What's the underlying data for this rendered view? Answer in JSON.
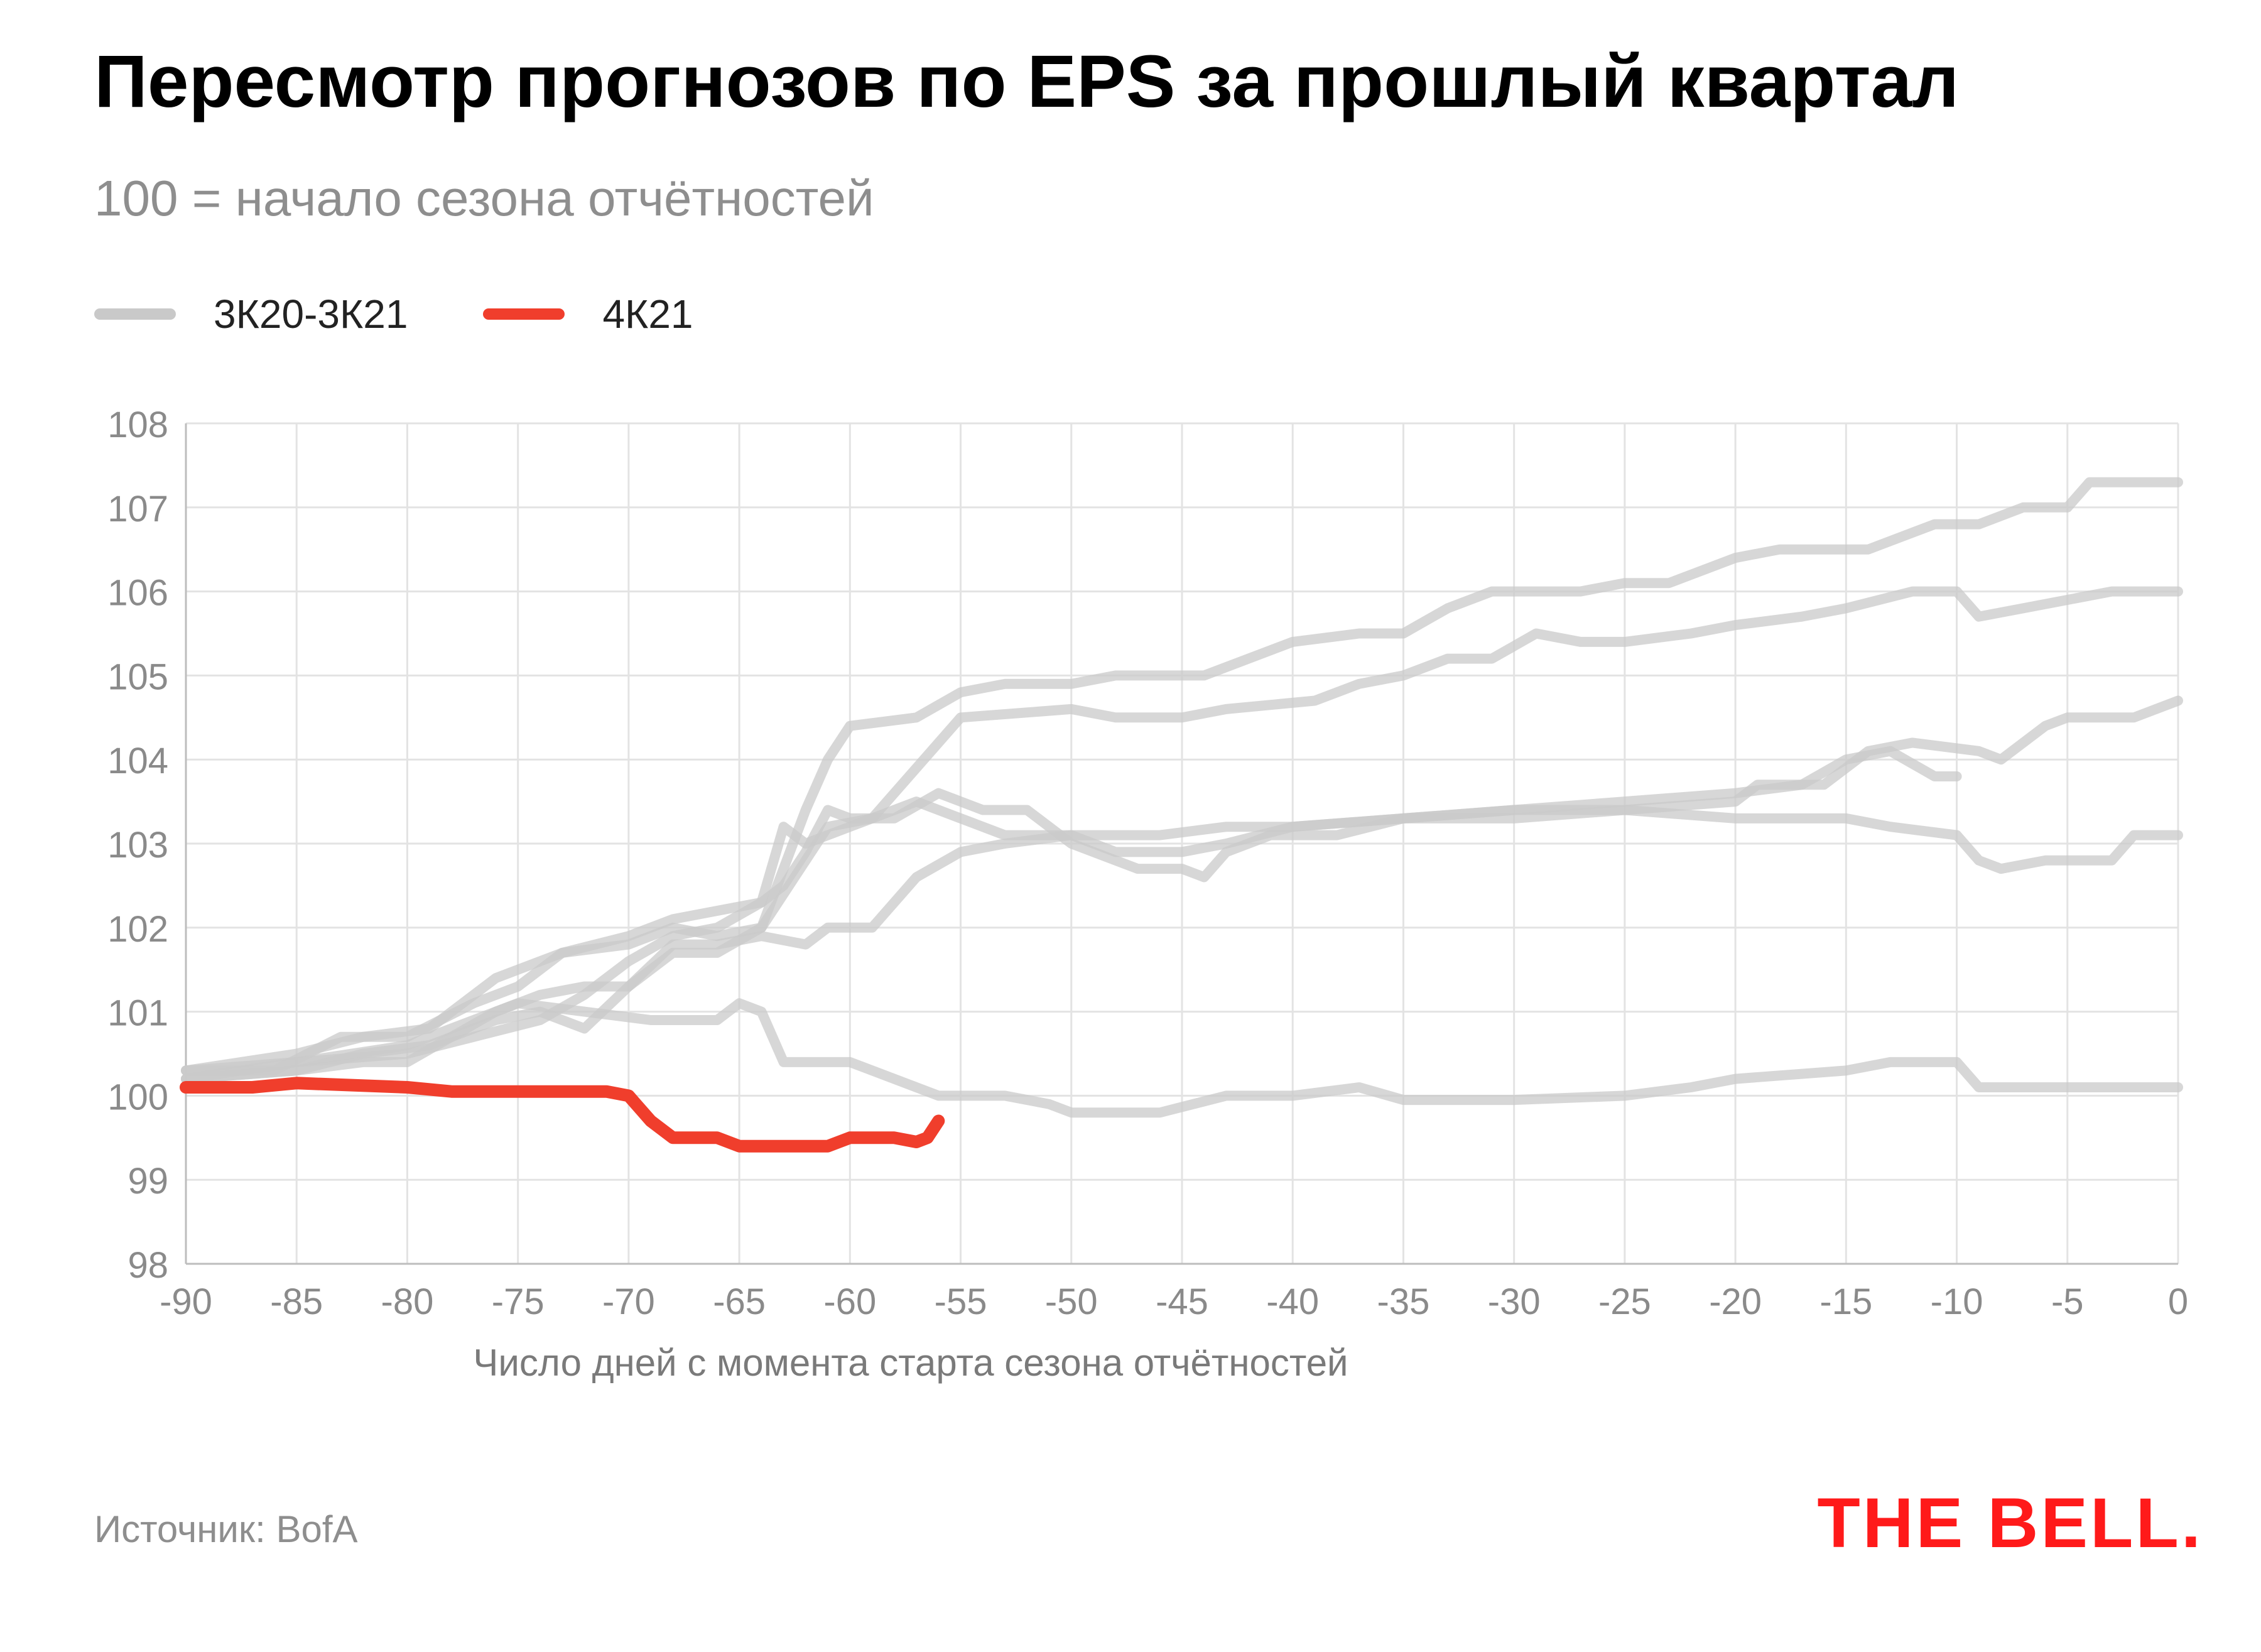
{
  "chart_data": {
    "type": "line",
    "title": "Пересмотр прогнозов по EPS за прошлый квартал",
    "subtitle": "100 = начало сезона отчётностей",
    "xlabel": "Число дней с момента старта сезона отчётностей",
    "ylabel": "",
    "xlim": [
      -90,
      0
    ],
    "ylim": [
      98,
      108
    ],
    "x_ticks": [
      -90,
      -85,
      -80,
      -75,
      -70,
      -65,
      -60,
      -55,
      -50,
      -45,
      -40,
      -35,
      -30,
      -25,
      -20,
      -15,
      -10,
      -5,
      0
    ],
    "y_ticks": [
      98,
      99,
      100,
      101,
      102,
      103,
      104,
      105,
      106,
      107,
      108
    ],
    "grid": true,
    "legend": [
      {
        "label": "3К20-3К21",
        "color": "#c9c9c9"
      },
      {
        "label": "4К21",
        "color": "#f03e2c"
      }
    ],
    "series": [
      {
        "name": "3К20-3К21",
        "color": "#c9c9c9",
        "points": [
          [
            -90,
            100.3
          ],
          [
            -85,
            100.4
          ],
          [
            -80,
            100.6
          ],
          [
            -75,
            101.1
          ],
          [
            -72,
            101.0
          ],
          [
            -69,
            100.9
          ],
          [
            -66,
            100.9
          ],
          [
            -65,
            101.1
          ],
          [
            -64,
            101.0
          ],
          [
            -63,
            100.4
          ],
          [
            -60,
            100.4
          ],
          [
            -58,
            100.2
          ],
          [
            -56,
            100.0
          ],
          [
            -53,
            100.0
          ],
          [
            -51,
            99.9
          ],
          [
            -50,
            99.8
          ],
          [
            -46,
            99.8
          ],
          [
            -43,
            100.0
          ],
          [
            -40,
            100.0
          ],
          [
            -37,
            100.1
          ],
          [
            -35,
            99.95
          ],
          [
            -30,
            99.95
          ],
          [
            -25,
            100.0
          ],
          [
            -22,
            100.1
          ],
          [
            -20,
            100.2
          ],
          [
            -15,
            100.3
          ],
          [
            -13,
            100.4
          ],
          [
            -10,
            100.4
          ],
          [
            -9,
            100.1
          ],
          [
            -5,
            100.1
          ],
          [
            0,
            100.1
          ]
        ]
      },
      {
        "name": "3К20-3К21",
        "color": "#c9c9c9",
        "points": [
          [
            -90,
            100.2
          ],
          [
            -85,
            100.4
          ],
          [
            -80,
            100.5
          ],
          [
            -77,
            100.7
          ],
          [
            -74,
            100.9
          ],
          [
            -72,
            101.2
          ],
          [
            -70,
            101.6
          ],
          [
            -68,
            101.9
          ],
          [
            -66,
            102.0
          ],
          [
            -64,
            102.3
          ],
          [
            -63,
            103.2
          ],
          [
            -62,
            103.0
          ],
          [
            -60,
            103.2
          ],
          [
            -57,
            103.5
          ],
          [
            -55,
            103.3
          ],
          [
            -53,
            103.1
          ],
          [
            -50,
            103.1
          ],
          [
            -48,
            102.9
          ],
          [
            -45,
            102.9
          ],
          [
            -43,
            103.0
          ],
          [
            -40,
            103.2
          ],
          [
            -35,
            103.3
          ],
          [
            -30,
            103.4
          ],
          [
            -25,
            103.5
          ],
          [
            -20,
            103.6
          ],
          [
            -17,
            103.7
          ],
          [
            -15,
            104.0
          ],
          [
            -13,
            104.1
          ],
          [
            -11,
            103.8
          ],
          [
            -10,
            103.8
          ]
        ]
      },
      {
        "name": "3К20-3К21",
        "color": "#c9c9c9",
        "points": [
          [
            -90,
            100.3
          ],
          [
            -85,
            100.5
          ],
          [
            -82,
            100.7
          ],
          [
            -79,
            100.8
          ],
          [
            -76,
            101.4
          ],
          [
            -73,
            101.7
          ],
          [
            -70,
            101.9
          ],
          [
            -68,
            102.1
          ],
          [
            -66,
            102.2
          ],
          [
            -64,
            102.3
          ],
          [
            -63,
            102.5
          ],
          [
            -62,
            102.9
          ],
          [
            -61,
            103.4
          ],
          [
            -60,
            103.3
          ],
          [
            -58,
            103.3
          ],
          [
            -56,
            103.6
          ],
          [
            -54,
            103.4
          ],
          [
            -52,
            103.4
          ],
          [
            -50,
            103.0
          ],
          [
            -47,
            102.7
          ],
          [
            -45,
            102.7
          ],
          [
            -44,
            102.6
          ],
          [
            -43,
            102.9
          ],
          [
            -41,
            103.1
          ],
          [
            -38,
            103.1
          ],
          [
            -35,
            103.3
          ],
          [
            -30,
            103.3
          ],
          [
            -25,
            103.4
          ],
          [
            -20,
            103.3
          ],
          [
            -15,
            103.3
          ],
          [
            -13,
            103.2
          ],
          [
            -10,
            103.1
          ],
          [
            -9,
            102.8
          ],
          [
            -8,
            102.7
          ],
          [
            -6,
            102.8
          ],
          [
            -3,
            102.8
          ],
          [
            -2,
            103.1
          ],
          [
            0,
            103.1
          ]
        ]
      },
      {
        "name": "3К20-3К21",
        "color": "#c9c9c9",
        "points": [
          [
            -90,
            100.2
          ],
          [
            -85,
            100.3
          ],
          [
            -82,
            100.5
          ],
          [
            -79,
            100.6
          ],
          [
            -76,
            100.9
          ],
          [
            -74,
            101.0
          ],
          [
            -72,
            100.8
          ],
          [
            -70,
            101.3
          ],
          [
            -68,
            101.8
          ],
          [
            -66,
            101.8
          ],
          [
            -64,
            101.9
          ],
          [
            -62,
            101.8
          ],
          [
            -61,
            102.0
          ],
          [
            -59,
            102.0
          ],
          [
            -57,
            102.6
          ],
          [
            -55,
            102.9
          ],
          [
            -53,
            103.0
          ],
          [
            -50,
            103.1
          ],
          [
            -46,
            103.1
          ],
          [
            -43,
            103.2
          ],
          [
            -40,
            103.2
          ],
          [
            -35,
            103.3
          ],
          [
            -30,
            103.4
          ],
          [
            -25,
            103.4
          ],
          [
            -20,
            103.5
          ],
          [
            -19,
            103.7
          ],
          [
            -16,
            103.7
          ],
          [
            -14,
            104.1
          ],
          [
            -12,
            104.2
          ],
          [
            -9,
            104.1
          ],
          [
            -8,
            104.0
          ],
          [
            -6,
            104.4
          ],
          [
            -5,
            104.5
          ],
          [
            -2,
            104.5
          ],
          [
            0,
            104.7
          ]
        ]
      },
      {
        "name": "3К20-3К21",
        "color": "#c9c9c9",
        "points": [
          [
            -90,
            100.2
          ],
          [
            -85,
            100.3
          ],
          [
            -82,
            100.4
          ],
          [
            -80,
            100.4
          ],
          [
            -78,
            100.7
          ],
          [
            -76,
            101.0
          ],
          [
            -74,
            101.2
          ],
          [
            -72,
            101.3
          ],
          [
            -70,
            101.3
          ],
          [
            -68,
            101.7
          ],
          [
            -66,
            101.7
          ],
          [
            -64,
            102.0
          ],
          [
            -63,
            102.4
          ],
          [
            -62,
            102.8
          ],
          [
            -61,
            103.2
          ],
          [
            -59,
            103.3
          ],
          [
            -57,
            103.9
          ],
          [
            -55,
            104.5
          ],
          [
            -50,
            104.6
          ],
          [
            -48,
            104.5
          ],
          [
            -45,
            104.5
          ],
          [
            -43,
            104.6
          ],
          [
            -39,
            104.7
          ],
          [
            -37,
            104.9
          ],
          [
            -35,
            105.0
          ],
          [
            -33,
            105.2
          ],
          [
            -31,
            105.2
          ],
          [
            -29,
            105.5
          ],
          [
            -27,
            105.4
          ],
          [
            -25,
            105.4
          ],
          [
            -22,
            105.5
          ],
          [
            -20,
            105.6
          ],
          [
            -17,
            105.7
          ],
          [
            -15,
            105.8
          ],
          [
            -12,
            106.0
          ],
          [
            -10,
            106.0
          ],
          [
            -9,
            105.7
          ],
          [
            -7,
            105.8
          ],
          [
            -5,
            105.9
          ],
          [
            -3,
            106.0
          ],
          [
            0,
            106.0
          ]
        ]
      },
      {
        "name": "3К20-3К21",
        "color": "#c9c9c9",
        "points": [
          [
            -90,
            100.3
          ],
          [
            -86,
            100.3
          ],
          [
            -83,
            100.7
          ],
          [
            -80,
            100.7
          ],
          [
            -77,
            101.1
          ],
          [
            -75,
            101.3
          ],
          [
            -73,
            101.7
          ],
          [
            -70,
            101.8
          ],
          [
            -68,
            102.0
          ],
          [
            -66,
            101.9
          ],
          [
            -64,
            102.0
          ],
          [
            -63,
            102.7
          ],
          [
            -62,
            103.4
          ],
          [
            -61,
            104.0
          ],
          [
            -60,
            104.4
          ],
          [
            -57,
            104.5
          ],
          [
            -55,
            104.8
          ],
          [
            -53,
            104.9
          ],
          [
            -50,
            104.9
          ],
          [
            -48,
            105.0
          ],
          [
            -44,
            105.0
          ],
          [
            -40,
            105.4
          ],
          [
            -37,
            105.5
          ],
          [
            -35,
            105.5
          ],
          [
            -33,
            105.8
          ],
          [
            -31,
            106.0
          ],
          [
            -27,
            106.0
          ],
          [
            -25,
            106.1
          ],
          [
            -23,
            106.1
          ],
          [
            -20,
            106.4
          ],
          [
            -18,
            106.5
          ],
          [
            -14,
            106.5
          ],
          [
            -13,
            106.6
          ],
          [
            -11,
            106.8
          ],
          [
            -9,
            106.8
          ],
          [
            -7,
            107.0
          ],
          [
            -5,
            107.0
          ],
          [
            -4,
            107.3
          ],
          [
            -1,
            107.3
          ],
          [
            0,
            107.3
          ]
        ]
      },
      {
        "name": "4К21",
        "color": "#f03e2c",
        "points": [
          [
            -90,
            100.1
          ],
          [
            -87,
            100.1
          ],
          [
            -85,
            100.15
          ],
          [
            -80,
            100.1
          ],
          [
            -78,
            100.05
          ],
          [
            -75,
            100.05
          ],
          [
            -71,
            100.05
          ],
          [
            -70,
            100.0
          ],
          [
            -69,
            99.7
          ],
          [
            -68,
            99.5
          ],
          [
            -66,
            99.5
          ],
          [
            -65,
            99.4
          ],
          [
            -64,
            99.4
          ],
          [
            -61,
            99.4
          ],
          [
            -60,
            99.5
          ],
          [
            -58,
            99.5
          ],
          [
            -57,
            99.45
          ],
          [
            -56.5,
            99.5
          ],
          [
            -56,
            99.7
          ]
        ]
      }
    ]
  },
  "footer": {
    "source": "Источник: BofA",
    "brand": "THE BELL."
  }
}
